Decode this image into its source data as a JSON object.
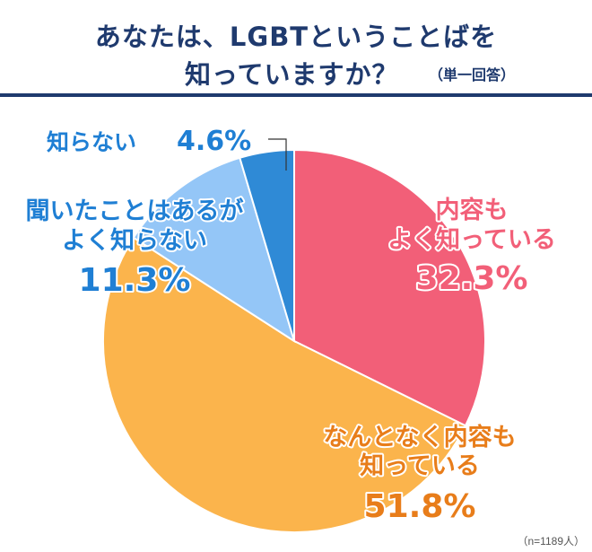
{
  "title": {
    "line1": "あなたは、LGBTということばを",
    "line2": "知っていますか？",
    "note": "（単一回答）"
  },
  "footnote": "（n=1189人）",
  "chart_data": {
    "type": "pie",
    "title": "あなたは、LGBTということばを知っていますか？（単一回答）",
    "start": "top, clockwise",
    "slices": [
      {
        "label": "内容もよく知っている",
        "lines": [
          "内容も",
          "よく知っている"
        ],
        "value": 32.3,
        "value_text": "32.3%",
        "color": "#f25f78"
      },
      {
        "label": "なんとなく内容も知っている",
        "lines": [
          "なんとなく内容も",
          "知っている"
        ],
        "value": 51.8,
        "value_text": "51.8%",
        "color": "#fbb44c"
      },
      {
        "label": "聞いたことはあるがよく知らない",
        "lines": [
          "聞いたことはあるが",
          "よく知らない"
        ],
        "value": 11.3,
        "value_text": "11.3%",
        "color": "#94c6f7"
      },
      {
        "label": "知らない",
        "lines": [
          "知らない"
        ],
        "value": 4.6,
        "value_text": "4.6%",
        "color": "#2f8ad6"
      }
    ]
  }
}
